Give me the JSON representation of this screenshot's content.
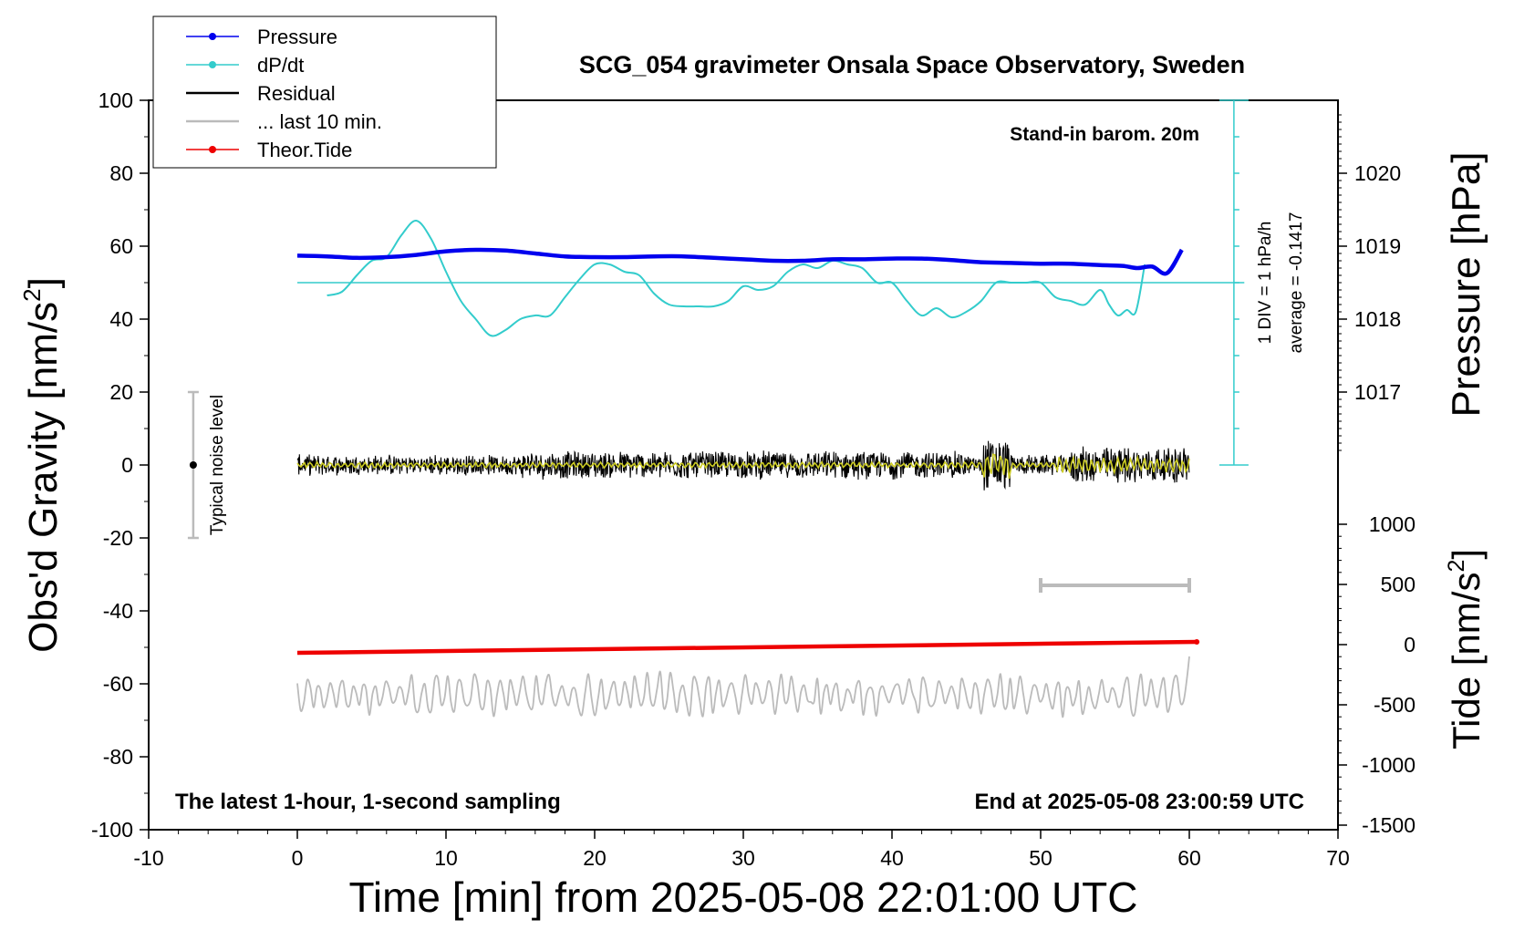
{
  "chart_data": {
    "type": "line",
    "title": "SCG_054 gravimeter Onsala Space Observatory, Sweden",
    "xlabel": "Time [min] from 2025-05-08 22:01:00 UTC",
    "ylabel_main": "Obs'd Gravity [nm/s",
    "ylabel_sup": "2",
    "ylabel_tail": "]",
    "y2label": "Pressure [hPa]",
    "y3label_main": "Tide [nm/s",
    "y3label_sup": "2",
    "y3label_tail": "]",
    "xlim": [
      -10,
      70
    ],
    "ylim": [
      -100,
      100
    ],
    "xticks": [
      "-10",
      "0",
      "10",
      "20",
      "30",
      "40",
      "50",
      "60",
      "70"
    ],
    "yticks": [
      "100",
      "80",
      "60",
      "40",
      "20",
      "0",
      "-20",
      "-40",
      "-60",
      "-80",
      "-100"
    ],
    "pressure_ticks": [
      "1020",
      "1019",
      "1018",
      "1017"
    ],
    "pressure_tick_values": [
      1020,
      1019,
      1018,
      1017
    ],
    "tide_ticks": [
      "1000",
      "500",
      "0",
      "-500",
      "-1000",
      "-1500"
    ],
    "tide_tick_values": [
      1000,
      500,
      0,
      -500,
      -1000,
      -1500
    ],
    "annotations": {
      "barometer": "Stand-in barom. 20m",
      "footer_left": "The latest 1-hour, 1-second sampling",
      "footer_right": "End at 2025-05-08 23:00:59 UTC",
      "div_label": "1 DIV = 1 hPa/h",
      "average_label": "average = -0.1417",
      "noise_label": "Typical noise level"
    },
    "legend": [
      {
        "label": "Pressure",
        "color": "#0000ee",
        "marker": true
      },
      {
        "label": "dP/dt",
        "color": "#33cccc",
        "marker": true
      },
      {
        "label": "Residual",
        "color": "#000000",
        "marker": false
      },
      {
        "label": "... last 10 min.",
        "color": "#bbbbbb",
        "marker": false
      },
      {
        "label": "Theor.Tide",
        "color": "#ee0000",
        "marker": true
      }
    ],
    "colors": {
      "pressure": "#0000ee",
      "dpdt": "#33cccc",
      "residual": "#000000",
      "residual_smooth": "#cccc22",
      "last10": "#bbbbbb",
      "tide": "#ee0000",
      "noise_bar": "#bbbbbb"
    },
    "pressure_hpa": {
      "x": [
        0,
        2,
        4,
        6,
        8,
        10,
        12,
        14,
        16,
        18,
        20,
        22,
        24,
        26,
        28,
        30,
        32,
        34,
        36,
        38,
        40,
        42,
        44,
        46,
        48,
        50,
        52,
        54,
        55.5,
        56.5,
        57.5,
        58.5,
        59.5
      ],
      "y": [
        1018.87,
        1018.86,
        1018.84,
        1018.85,
        1018.88,
        1018.93,
        1018.95,
        1018.94,
        1018.9,
        1018.86,
        1018.85,
        1018.85,
        1018.86,
        1018.86,
        1018.84,
        1018.82,
        1018.8,
        1018.8,
        1018.82,
        1018.82,
        1018.83,
        1018.83,
        1018.81,
        1018.78,
        1018.77,
        1018.76,
        1018.76,
        1018.74,
        1018.73,
        1018.7,
        1018.72,
        1018.63,
        1018.95
      ]
    },
    "dpdt": {
      "x": [
        2,
        3,
        4,
        5,
        6,
        7,
        8,
        9,
        10,
        11,
        12,
        13,
        14,
        15,
        16,
        17,
        18,
        19,
        20,
        21,
        22,
        23,
        24,
        25,
        26,
        27,
        28,
        29,
        30,
        31,
        32,
        33,
        34,
        35,
        36,
        37,
        38,
        39,
        40,
        41,
        42,
        43,
        44,
        45,
        46,
        47,
        48,
        49,
        50,
        51,
        52,
        53,
        54,
        54.6,
        55.2,
        55.8,
        56.4,
        57
      ],
      "y": [
        46.5,
        47.5,
        52,
        56,
        57,
        63,
        67,
        62,
        53,
        45,
        40,
        35.5,
        37,
        40,
        41,
        41,
        46,
        51,
        55,
        55,
        53,
        52,
        47,
        44,
        43.5,
        43.5,
        43.5,
        45,
        49,
        48,
        49,
        53,
        55,
        54,
        56,
        55,
        54,
        50,
        50,
        45,
        41,
        43,
        40.5,
        42,
        45,
        50,
        50,
        50,
        50,
        46,
        45,
        44,
        48,
        44,
        41,
        42.5,
        42,
        55
      ]
    },
    "tide": {
      "x": [
        0,
        60.5
      ],
      "y": [
        -51.5,
        -48.5
      ]
    },
    "residual_span": {
      "x": [
        0,
        60
      ],
      "center": 0,
      "amplitude": 6
    },
    "last10_span": {
      "x": [
        0,
        60
      ],
      "center": -63,
      "amplitude": 5
    },
    "recent_window": {
      "x": [
        50,
        60
      ],
      "y": -33
    },
    "noise_bar": {
      "x": -7,
      "y": [
        -20,
        20
      ],
      "center": 0
    },
    "dpdt_scale": {
      "x": 63,
      "baseline": 50,
      "top": 100,
      "bottom": 0,
      "div_step": 10
    }
  }
}
